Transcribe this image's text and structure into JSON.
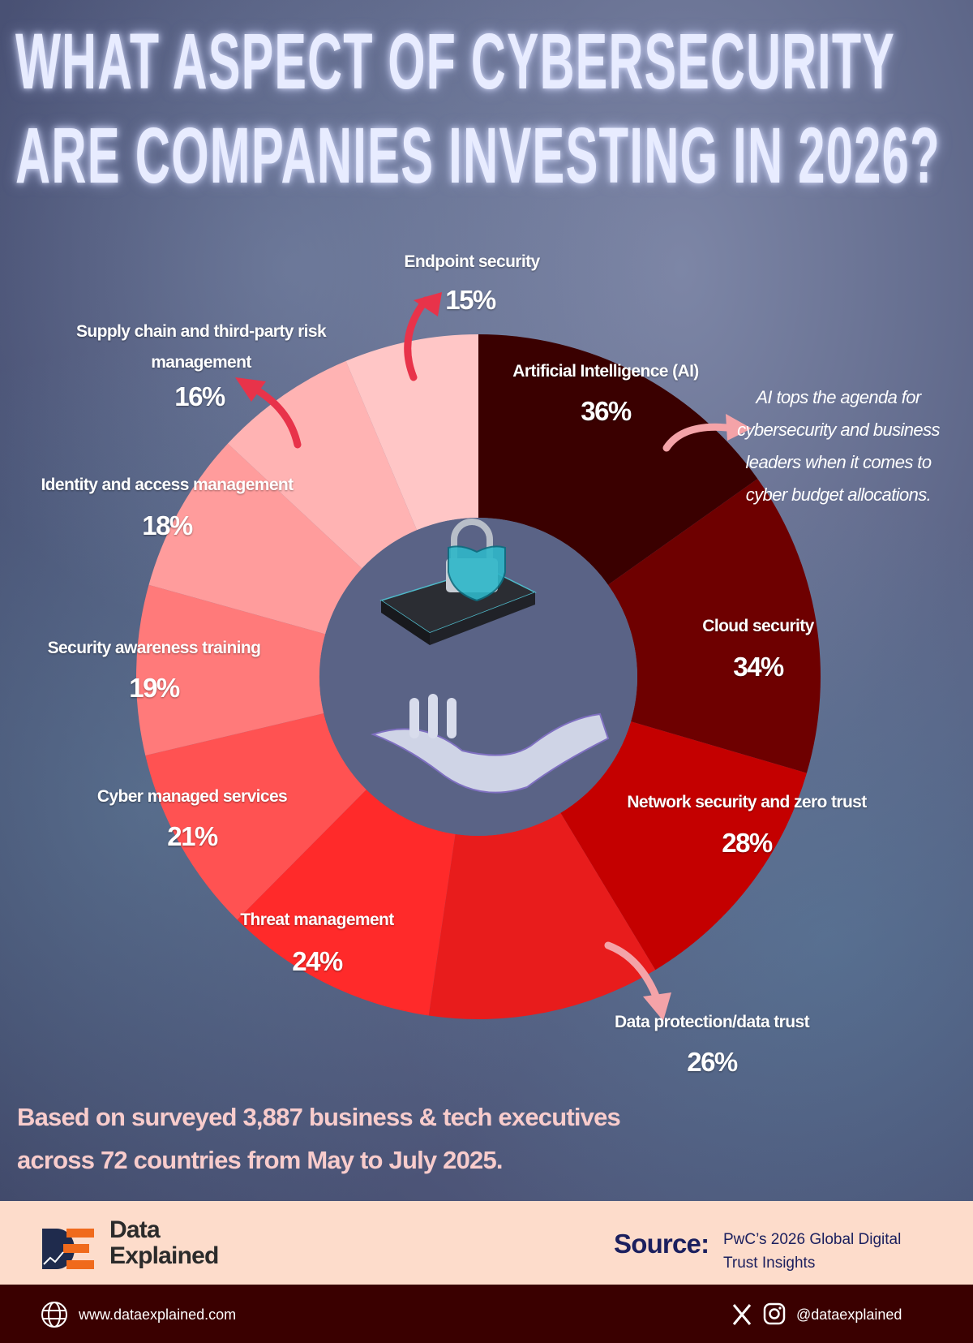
{
  "title": {
    "line1": "WHAT ASPECT OF CYBERSECURITY",
    "line2": "ARE COMPANIES INVESTING IN 2026?"
  },
  "chart_data": {
    "type": "pie",
    "variant": "donut",
    "categories": [
      "Artificial Intelligence (AI)",
      "Cloud security",
      "Network security and zero trust",
      "Data protection/data trust",
      "Threat management",
      "Cyber managed services",
      "Security awareness training",
      "Identity and access management",
      "Supply chain and third-party risk management",
      "Endpoint security"
    ],
    "values": [
      36,
      34,
      28,
      26,
      24,
      21,
      19,
      18,
      16,
      15
    ],
    "labels": [
      "36%",
      "34%",
      "28%",
      "26%",
      "24%",
      "21%",
      "19%",
      "18%",
      "16%",
      "15%"
    ],
    "colors": [
      "#3a0000",
      "#6e0000",
      "#c40000",
      "#e81c1c",
      "#ff2a2a",
      "#ff5252",
      "#ff7a7a",
      "#ff9c9c",
      "#ffb3b3",
      "#ffc6c6"
    ],
    "annotation": "AI tops the agenda for cybersecurity and business leaders when it comes to cyber budget allocations."
  },
  "footnote": {
    "line1": " Based on surveyed 3,887 business & tech executives",
    "line2": "across 72 countries from May to July 2025."
  },
  "brand": {
    "line1": "Data",
    "line2": "Explained",
    "logo": "DE"
  },
  "source": {
    "label": "Source:",
    "line1": "PwC’s 2026 Global Digital",
    "line2": "Trust Insights"
  },
  "bottom": {
    "url": "www.dataexplained.com",
    "handle": "@dataexplained",
    "icons": [
      "globe-icon",
      "x-icon",
      "instagram-icon"
    ]
  }
}
